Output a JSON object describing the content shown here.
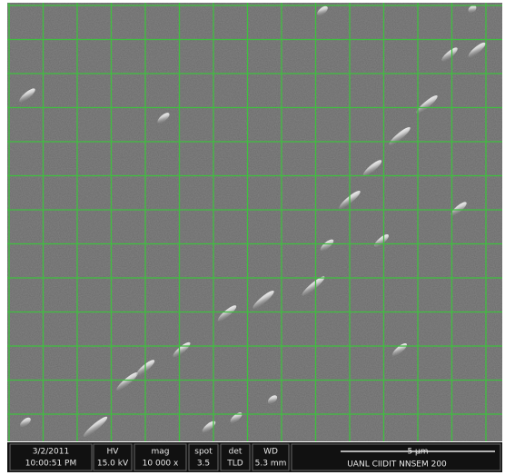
{
  "info_bar": {
    "date": "3/2/2011",
    "time": "10:00:51 PM",
    "fields": [
      {
        "label": "HV",
        "value": "15.0 kV"
      },
      {
        "label": "mag",
        "value": "10 000 x"
      },
      {
        "label": "spot",
        "value": "3.5"
      },
      {
        "label": "det",
        "value": "TLD"
      },
      {
        "label": "WD",
        "value": "5.3 mm"
      }
    ],
    "scale_bar": "5 µm",
    "instrument": "UANL CIIDIT NNSEM 200"
  }
}
